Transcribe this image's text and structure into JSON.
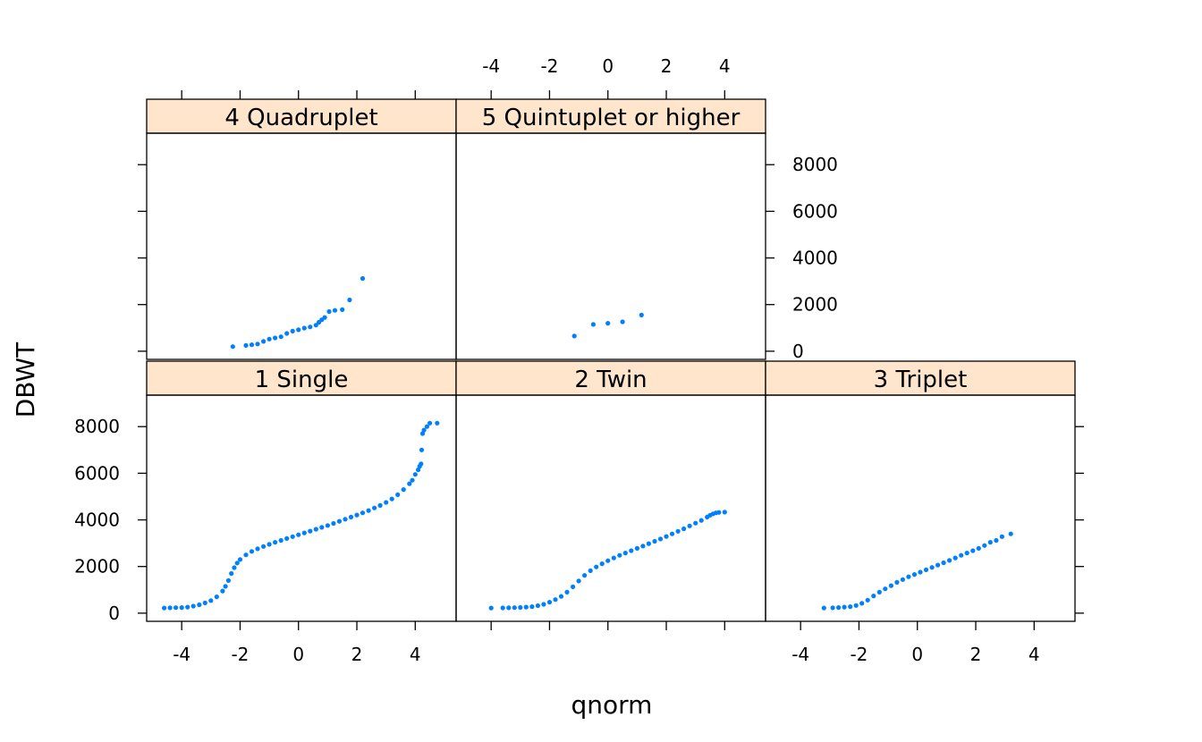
{
  "chart_data": {
    "type": "scatter",
    "subtype": "qq-plot-trellis",
    "xlabel": "qnorm",
    "ylabel": "DBWT",
    "xlim": [
      -5.2,
      5.4
    ],
    "ylim": [
      -350,
      9350
    ],
    "x_ticks": [
      -4,
      -2,
      0,
      2,
      4
    ],
    "y_ticks": [
      0,
      2000,
      4000,
      6000,
      8000
    ],
    "point_color": "#0080ff",
    "strip_color": "#ffe5cc",
    "panels": [
      {
        "label": "1 Single",
        "points": [
          [
            -4.6,
            220
          ],
          [
            -4.4,
            230
          ],
          [
            -4.2,
            235
          ],
          [
            -4.0,
            240
          ],
          [
            -3.8,
            260
          ],
          [
            -3.6,
            300
          ],
          [
            -3.4,
            360
          ],
          [
            -3.2,
            440
          ],
          [
            -3.0,
            540
          ],
          [
            -2.8,
            700
          ],
          [
            -2.6,
            950
          ],
          [
            -2.5,
            1150
          ],
          [
            -2.4,
            1400
          ],
          [
            -2.3,
            1700
          ],
          [
            -2.2,
            1950
          ],
          [
            -2.1,
            2150
          ],
          [
            -2.0,
            2300
          ],
          [
            -1.8,
            2500
          ],
          [
            -1.6,
            2650
          ],
          [
            -1.4,
            2760
          ],
          [
            -1.2,
            2860
          ],
          [
            -1.0,
            2950
          ],
          [
            -0.8,
            3040
          ],
          [
            -0.6,
            3120
          ],
          [
            -0.4,
            3200
          ],
          [
            -0.2,
            3280
          ],
          [
            0,
            3360
          ],
          [
            0.2,
            3440
          ],
          [
            0.4,
            3520
          ],
          [
            0.6,
            3600
          ],
          [
            0.8,
            3680
          ],
          [
            1.0,
            3760
          ],
          [
            1.2,
            3850
          ],
          [
            1.4,
            3940
          ],
          [
            1.6,
            4030
          ],
          [
            1.8,
            4120
          ],
          [
            2.0,
            4210
          ],
          [
            2.2,
            4300
          ],
          [
            2.4,
            4400
          ],
          [
            2.6,
            4510
          ],
          [
            2.8,
            4620
          ],
          [
            3.0,
            4750
          ],
          [
            3.2,
            4900
          ],
          [
            3.4,
            5080
          ],
          [
            3.6,
            5300
          ],
          [
            3.8,
            5550
          ],
          [
            3.9,
            5700
          ],
          [
            4.0,
            5950
          ],
          [
            4.1,
            6150
          ],
          [
            4.15,
            6300
          ],
          [
            4.2,
            6400
          ],
          [
            4.22,
            7000
          ],
          [
            4.25,
            7700
          ],
          [
            4.3,
            7850
          ],
          [
            4.4,
            8000
          ],
          [
            4.5,
            8150
          ],
          [
            4.75,
            8150
          ]
        ]
      },
      {
        "label": "2 Twin",
        "points": [
          [
            -4.0,
            220
          ],
          [
            -3.6,
            225
          ],
          [
            -3.4,
            230
          ],
          [
            -3.2,
            235
          ],
          [
            -3.0,
            245
          ],
          [
            -2.8,
            260
          ],
          [
            -2.6,
            280
          ],
          [
            -2.4,
            320
          ],
          [
            -2.2,
            380
          ],
          [
            -2.0,
            470
          ],
          [
            -1.8,
            580
          ],
          [
            -1.6,
            720
          ],
          [
            -1.4,
            900
          ],
          [
            -1.2,
            1130
          ],
          [
            -1.0,
            1380
          ],
          [
            -0.8,
            1620
          ],
          [
            -0.6,
            1820
          ],
          [
            -0.4,
            1980
          ],
          [
            -0.2,
            2120
          ],
          [
            0,
            2250
          ],
          [
            0.2,
            2370
          ],
          [
            0.4,
            2480
          ],
          [
            0.6,
            2580
          ],
          [
            0.8,
            2680
          ],
          [
            1.0,
            2780
          ],
          [
            1.2,
            2880
          ],
          [
            1.4,
            2980
          ],
          [
            1.6,
            3080
          ],
          [
            1.8,
            3180
          ],
          [
            2.0,
            3290
          ],
          [
            2.2,
            3400
          ],
          [
            2.4,
            3510
          ],
          [
            2.6,
            3620
          ],
          [
            2.8,
            3740
          ],
          [
            3.0,
            3860
          ],
          [
            3.2,
            3980
          ],
          [
            3.4,
            4120
          ],
          [
            3.5,
            4200
          ],
          [
            3.6,
            4260
          ],
          [
            3.7,
            4300
          ],
          [
            3.8,
            4320
          ],
          [
            4.0,
            4330
          ]
        ]
      },
      {
        "label": "3 Triplet",
        "points": [
          [
            -3.2,
            220
          ],
          [
            -2.9,
            230
          ],
          [
            -2.7,
            240
          ],
          [
            -2.5,
            260
          ],
          [
            -2.3,
            280
          ],
          [
            -2.1,
            330
          ],
          [
            -1.9,
            420
          ],
          [
            -1.7,
            560
          ],
          [
            -1.5,
            740
          ],
          [
            -1.3,
            900
          ],
          [
            -1.1,
            1040
          ],
          [
            -0.9,
            1180
          ],
          [
            -0.7,
            1320
          ],
          [
            -0.5,
            1440
          ],
          [
            -0.3,
            1560
          ],
          [
            -0.1,
            1660
          ],
          [
            0.1,
            1760
          ],
          [
            0.3,
            1860
          ],
          [
            0.5,
            1960
          ],
          [
            0.7,
            2060
          ],
          [
            0.9,
            2160
          ],
          [
            1.1,
            2260
          ],
          [
            1.3,
            2370
          ],
          [
            1.5,
            2480
          ],
          [
            1.7,
            2580
          ],
          [
            1.9,
            2680
          ],
          [
            2.1,
            2780
          ],
          [
            2.3,
            2900
          ],
          [
            2.5,
            3040
          ],
          [
            2.7,
            3120
          ],
          [
            2.9,
            3280
          ],
          [
            3.2,
            3400
          ]
        ]
      },
      {
        "label": "4 Quadruplet",
        "points": [
          [
            -2.25,
            200
          ],
          [
            -1.8,
            250
          ],
          [
            -1.6,
            280
          ],
          [
            -1.4,
            310
          ],
          [
            -1.2,
            420
          ],
          [
            -1.0,
            520
          ],
          [
            -0.8,
            570
          ],
          [
            -0.6,
            620
          ],
          [
            -0.4,
            760
          ],
          [
            -0.2,
            860
          ],
          [
            0,
            920
          ],
          [
            0.2,
            990
          ],
          [
            0.4,
            1040
          ],
          [
            0.6,
            1120
          ],
          [
            0.7,
            1240
          ],
          [
            0.8,
            1350
          ],
          [
            0.9,
            1450
          ],
          [
            1.05,
            1700
          ],
          [
            1.25,
            1750
          ],
          [
            1.5,
            1780
          ],
          [
            1.75,
            2200
          ],
          [
            2.2,
            3120
          ]
        ]
      },
      {
        "label": "5 Quintuplet or higher",
        "points": [
          [
            -1.15,
            650
          ],
          [
            -0.5,
            1150
          ],
          [
            0,
            1200
          ],
          [
            0.5,
            1260
          ],
          [
            1.15,
            1550
          ]
        ]
      }
    ]
  }
}
